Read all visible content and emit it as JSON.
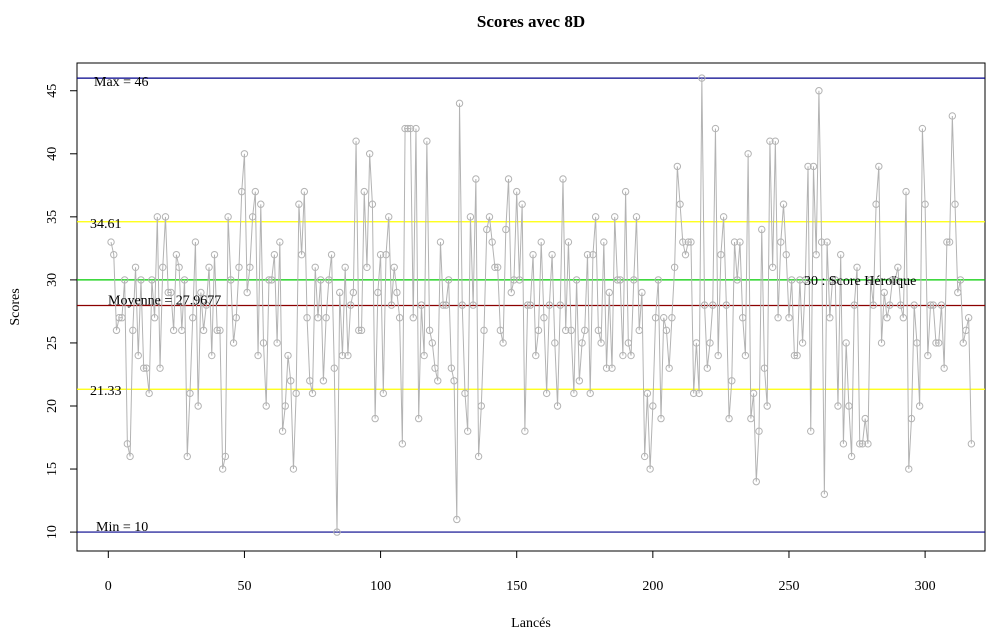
{
  "chart_data": {
    "type": "line",
    "title": "Scores avec 8D",
    "xlabel": "Lancés",
    "ylabel": "Scores",
    "xlim": [
      -11.5,
      322
    ],
    "ylim": [
      8.5,
      47.2
    ],
    "x_ticks": [
      0,
      50,
      100,
      150,
      200,
      250,
      300
    ],
    "y_ticks": [
      10,
      15,
      20,
      25,
      30,
      35,
      40,
      45
    ],
    "grid": false,
    "legend": "none",
    "series_style": {
      "color": "#b3b3b3",
      "markers": "open-circle"
    },
    "reference_lines": [
      {
        "key": "max",
        "value": 46,
        "color": "#00008b",
        "label": "Max =  46"
      },
      {
        "key": "upper",
        "value": 34.61,
        "color": "#ffff00",
        "label": "34.61"
      },
      {
        "key": "hero",
        "value": 30,
        "color": "#00cc00",
        "label": "30 : Score Héroïque"
      },
      {
        "key": "mean",
        "value": 27.9677,
        "color": "#8b0000",
        "label": "Moyenne =  27.9677"
      },
      {
        "key": "lower",
        "value": 21.33,
        "color": "#ffff00",
        "label": "21.33"
      },
      {
        "key": "min",
        "value": 10,
        "color": "#00008b",
        "label": "Min =  10"
      }
    ],
    "series": [
      {
        "values": [
          33,
          32,
          26,
          27,
          27,
          30,
          17,
          16,
          26,
          31,
          24,
          30,
          23,
          23,
          21,
          30,
          27,
          35,
          23,
          31,
          35,
          29,
          29,
          26,
          32,
          31,
          26,
          30,
          16,
          21,
          27,
          33,
          20,
          29,
          26,
          28,
          31,
          24,
          32,
          26,
          26,
          15,
          16,
          35,
          30,
          25,
          27,
          31,
          37,
          40,
          29,
          31,
          35,
          37,
          24,
          36,
          25,
          20,
          30,
          30,
          32,
          25,
          33,
          18,
          20,
          24,
          22,
          15,
          21,
          36,
          32,
          37,
          27,
          22,
          21,
          31,
          27,
          30,
          22,
          27,
          30,
          32,
          23,
          10,
          29,
          24,
          31,
          24,
          28,
          29,
          41,
          26,
          26,
          37,
          31,
          40,
          36,
          19,
          29,
          32,
          21,
          32,
          35,
          28,
          31,
          29,
          27,
          17,
          42,
          42,
          42,
          27,
          42,
          19,
          28,
          24,
          41,
          26,
          25,
          23,
          22,
          33,
          28,
          28,
          30,
          23,
          22,
          11,
          44,
          28,
          21,
          18,
          35,
          28,
          38,
          16,
          20,
          26,
          34,
          35,
          33,
          31,
          31,
          26,
          25,
          34,
          38,
          29,
          30,
          37,
          30,
          36,
          18,
          28,
          28,
          32,
          24,
          26,
          33,
          27,
          21,
          28,
          32,
          25,
          20,
          28,
          38,
          26,
          33,
          26,
          21,
          30,
          22,
          25,
          26,
          32,
          21,
          32,
          35,
          26,
          25,
          33,
          23,
          29,
          23,
          35,
          30,
          30,
          24,
          37,
          25,
          24,
          30,
          35,
          26,
          29,
          16,
          21,
          15,
          20,
          27,
          30,
          19,
          27,
          26,
          23,
          27,
          31,
          39,
          36,
          33,
          32,
          33,
          33,
          21,
          25,
          21,
          46,
          28,
          23,
          25,
          28,
          42,
          24,
          32,
          35,
          28,
          19,
          22,
          33,
          30,
          33,
          27,
          24,
          40,
          19,
          21,
          14,
          18,
          34,
          23,
          20,
          41,
          31,
          41,
          27,
          33,
          36,
          32,
          27,
          30,
          24,
          24,
          30,
          25,
          30,
          39,
          18,
          39,
          32,
          45,
          33,
          13,
          33,
          27,
          30,
          30,
          20,
          32,
          17,
          25,
          20,
          16,
          28,
          31,
          17,
          17,
          19,
          17,
          30,
          28,
          36,
          39,
          25,
          29,
          27,
          28,
          30,
          30,
          31,
          28,
          27,
          37,
          15,
          19,
          28,
          25,
          20,
          42,
          36,
          24,
          28,
          28,
          25,
          25,
          28,
          23,
          33,
          33,
          43,
          36,
          29,
          30,
          25,
          26,
          27,
          17
        ]
      }
    ]
  }
}
